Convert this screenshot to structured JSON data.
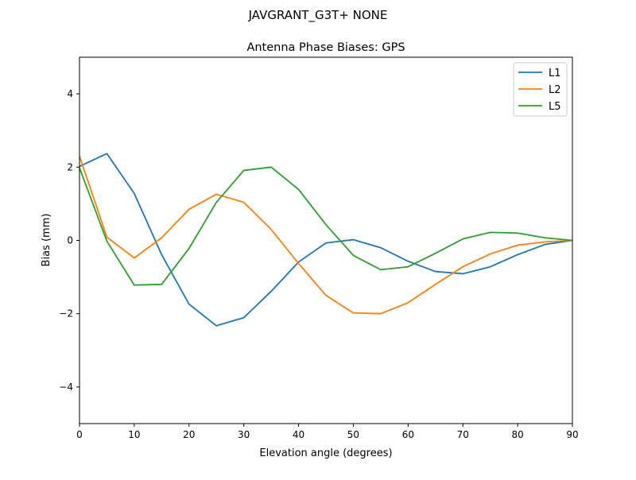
{
  "suptitle": "JAVGRANT_G3T+   NONE",
  "chart_data": {
    "type": "line",
    "title": "Antenna Phase Biases: GPS",
    "xlabel": "Elevation angle (degrees)",
    "ylabel": "Bias (mm)",
    "xlim": [
      0,
      90
    ],
    "ylim": [
      -5,
      5
    ],
    "xticks": [
      0,
      10,
      20,
      30,
      40,
      50,
      60,
      70,
      80,
      90
    ],
    "yticks": [
      -4,
      -2,
      0,
      2,
      4
    ],
    "ytick_labels": [
      "−4",
      "−2",
      "0",
      "2",
      "4"
    ],
    "grid": false,
    "legend_position": "top-right",
    "x": [
      0,
      5,
      10,
      15,
      20,
      25,
      30,
      35,
      40,
      45,
      50,
      55,
      60,
      65,
      70,
      75,
      80,
      85,
      90
    ],
    "series": [
      {
        "name": "L1",
        "color": "#1f77b4",
        "values": [
          2.02,
          2.37,
          1.28,
          -0.39,
          -1.74,
          -2.33,
          -2.11,
          -1.39,
          -0.59,
          -0.07,
          0.02,
          -0.2,
          -0.57,
          -0.85,
          -0.91,
          -0.72,
          -0.39,
          -0.11,
          0
        ]
      },
      {
        "name": "L2",
        "color": "#ff7f0e",
        "values": [
          2.3,
          0.09,
          -0.48,
          0.07,
          0.85,
          1.26,
          1.04,
          0.3,
          -0.63,
          -1.5,
          -1.98,
          -2.0,
          -1.7,
          -1.2,
          -0.72,
          -0.37,
          -0.13,
          -0.04,
          0
        ]
      },
      {
        "name": "L5",
        "color": "#2ca02c",
        "values": [
          1.98,
          -0.02,
          -1.22,
          -1.2,
          -0.22,
          1.04,
          1.91,
          2.0,
          1.39,
          0.43,
          -0.41,
          -0.8,
          -0.72,
          -0.35,
          0.04,
          0.22,
          0.2,
          0.07,
          0
        ]
      }
    ]
  }
}
